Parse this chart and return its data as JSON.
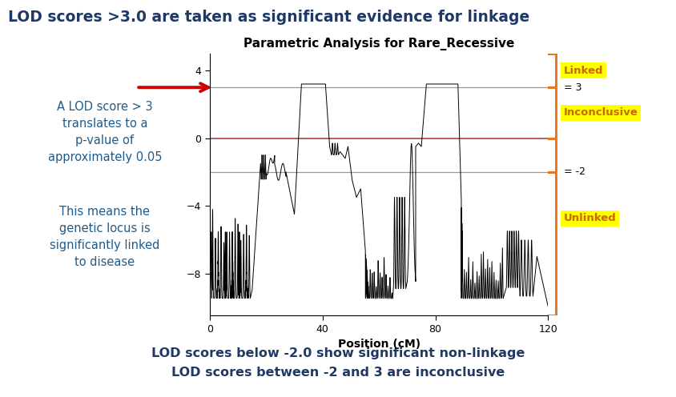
{
  "title": "Parametric Analysis for Rare_Recessive",
  "xlabel": "Position (cM)",
  "xlim": [
    0.0,
    120.0
  ],
  "ylim": [
    -10.5,
    5.0
  ],
  "yticks": [
    4.0,
    0.0,
    -4.0,
    -8.0
  ],
  "xticks": [
    0.0,
    40.0,
    80.0,
    120.0
  ],
  "hline_3": 3.0,
  "hline_0": 0.0,
  "hline_neg2": -2.0,
  "hline_3_color": "#999999",
  "hline_0_color": "#b05050",
  "hline_neg2_color": "#999999",
  "main_title": "LOD scores >3.0 are taken as significant evidence for linkage",
  "main_title_color": "#1F3864",
  "annotation_text1": "A LOD score > 3\ntranslates to a\np-value of\napproximately 0.05",
  "annotation_text2": "This means the\ngenetic locus is\nsignificantly linked\nto disease",
  "annotation_color": "#1F5C8B",
  "arrow_color": "#CC0000",
  "linked_label": "Linked",
  "inconclusive_label": "Inconclusive",
  "unlinked_label": "Unlinked",
  "label_bg_color": "#FFFF00",
  "label_text_color": "#CC6600",
  "bracket_color": "#E87722",
  "eq3_label": "= 3",
  "eqneg2_label": "= -2",
  "footer_text": "LOD scores below -2.0 show significant non-linkage\nLOD scores between -2 and 3 are inconclusive",
  "footer_bg": "#D3D3D3",
  "footer_text_color": "#1F3864",
  "background_color": "#FFFFFF",
  "plot_bg_color": "#FFFFFF"
}
